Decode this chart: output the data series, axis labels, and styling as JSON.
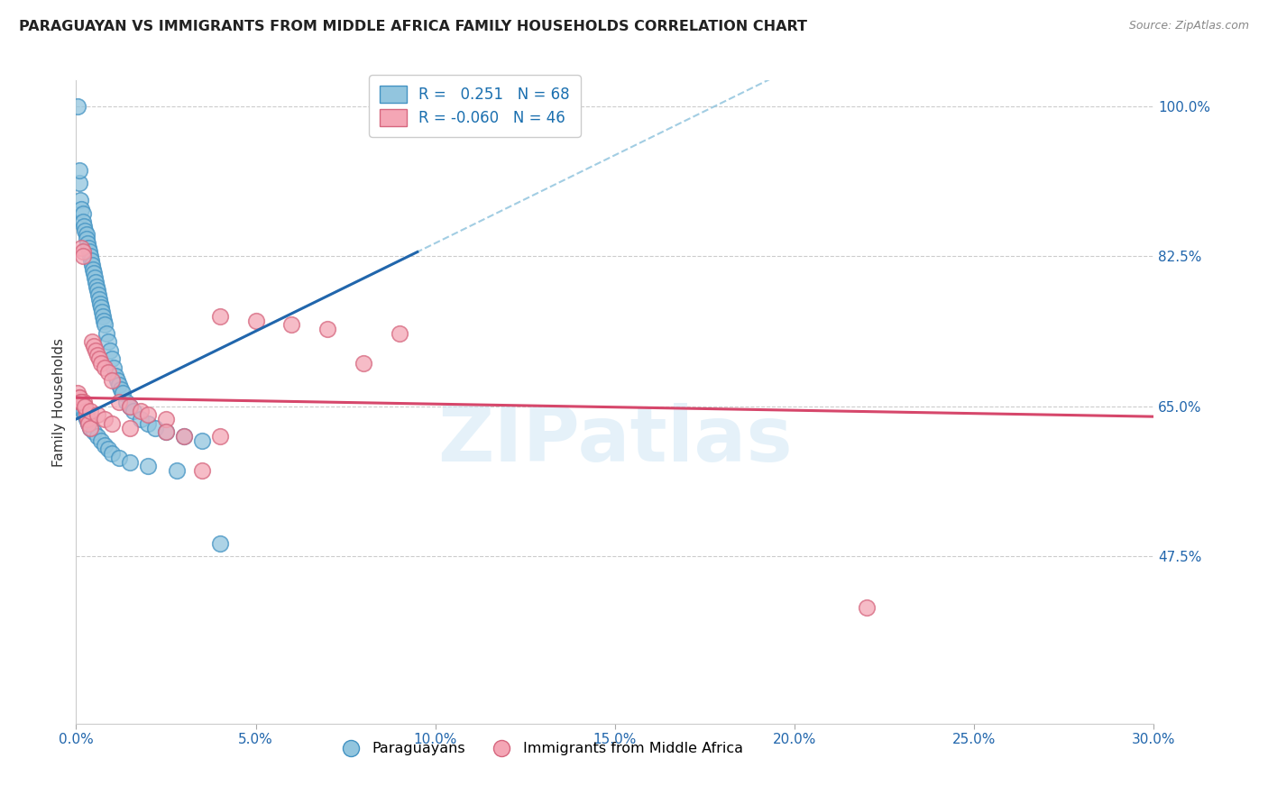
{
  "title": "PARAGUAYAN VS IMMIGRANTS FROM MIDDLE AFRICA FAMILY HOUSEHOLDS CORRELATION CHART",
  "source": "Source: ZipAtlas.com",
  "ylabel": "Family Households",
  "x_min": 0.0,
  "x_max": 30.0,
  "y_min": 28.0,
  "y_max": 103.0,
  "y_ticks": [
    47.5,
    65.0,
    82.5,
    100.0
  ],
  "x_ticks": [
    0.0,
    5.0,
    10.0,
    15.0,
    20.0,
    25.0,
    30.0
  ],
  "legend_blue_label": "R =   0.251   N = 68",
  "legend_pink_label": "R = -0.060   N = 46",
  "legend_paraguayans": "Paraguayans",
  "legend_immigrants": "Immigrants from Middle Africa",
  "watermark": "ZIPatlas",
  "blue_color": "#92c5de",
  "pink_color": "#f4a6b5",
  "blue_edge_color": "#4393c3",
  "pink_edge_color": "#d6667e",
  "blue_line_color": "#2166ac",
  "pink_line_color": "#d6476b",
  "blue_dashed_color": "#92c5de",
  "blue_x": [
    0.05,
    0.08,
    0.1,
    0.12,
    0.15,
    0.18,
    0.2,
    0.22,
    0.25,
    0.28,
    0.3,
    0.32,
    0.35,
    0.38,
    0.4,
    0.42,
    0.45,
    0.48,
    0.5,
    0.52,
    0.55,
    0.58,
    0.6,
    0.62,
    0.65,
    0.68,
    0.7,
    0.72,
    0.75,
    0.78,
    0.8,
    0.85,
    0.9,
    0.95,
    1.0,
    1.05,
    1.1,
    1.15,
    1.2,
    1.25,
    1.3,
    1.4,
    1.5,
    1.6,
    1.8,
    2.0,
    2.2,
    2.5,
    3.0,
    3.5,
    0.1,
    0.15,
    0.2,
    0.25,
    0.3,
    0.35,
    0.4,
    0.5,
    0.6,
    0.7,
    0.8,
    0.9,
    1.0,
    1.2,
    1.5,
    2.0,
    2.8,
    4.0
  ],
  "blue_y": [
    100.0,
    91.0,
    92.5,
    89.0,
    88.0,
    87.5,
    86.5,
    86.0,
    85.5,
    85.0,
    84.5,
    84.0,
    83.5,
    83.0,
    82.5,
    82.0,
    81.5,
    81.0,
    80.5,
    80.0,
    79.5,
    79.0,
    78.5,
    78.0,
    77.5,
    77.0,
    76.5,
    76.0,
    75.5,
    75.0,
    74.5,
    73.5,
    72.5,
    71.5,
    70.5,
    69.5,
    68.5,
    68.0,
    67.5,
    67.0,
    66.5,
    65.5,
    65.0,
    64.5,
    63.5,
    63.0,
    62.5,
    62.0,
    61.5,
    61.0,
    65.5,
    65.0,
    64.5,
    64.0,
    63.5,
    63.0,
    62.5,
    62.0,
    61.5,
    61.0,
    60.5,
    60.0,
    59.5,
    59.0,
    58.5,
    58.0,
    57.5,
    49.0
  ],
  "pink_x": [
    0.05,
    0.08,
    0.1,
    0.12,
    0.15,
    0.18,
    0.2,
    0.22,
    0.25,
    0.28,
    0.3,
    0.32,
    0.35,
    0.4,
    0.45,
    0.5,
    0.55,
    0.6,
    0.65,
    0.7,
    0.8,
    0.9,
    1.0,
    1.2,
    1.5,
    1.8,
    2.0,
    2.5,
    3.0,
    3.5,
    4.0,
    5.0,
    6.0,
    7.0,
    8.0,
    9.0,
    0.15,
    0.25,
    0.4,
    0.6,
    0.8,
    1.0,
    1.5,
    2.5,
    4.0,
    22.0
  ],
  "pink_y": [
    66.5,
    66.0,
    66.0,
    65.5,
    83.5,
    83.0,
    82.5,
    65.5,
    65.0,
    64.5,
    64.0,
    63.5,
    63.0,
    62.5,
    72.5,
    72.0,
    71.5,
    71.0,
    70.5,
    70.0,
    69.5,
    69.0,
    68.0,
    65.5,
    65.0,
    64.5,
    64.0,
    63.5,
    61.5,
    57.5,
    75.5,
    75.0,
    74.5,
    74.0,
    70.0,
    73.5,
    65.5,
    65.0,
    64.5,
    64.0,
    63.5,
    63.0,
    62.5,
    62.0,
    61.5,
    41.5
  ],
  "blue_line_x0": 0.0,
  "blue_line_x1": 9.5,
  "blue_line_y0": 63.5,
  "blue_line_y1": 83.0,
  "pink_line_x0": 0.0,
  "pink_line_x1": 30.0,
  "pink_line_y0": 66.0,
  "pink_line_y1": 63.8
}
